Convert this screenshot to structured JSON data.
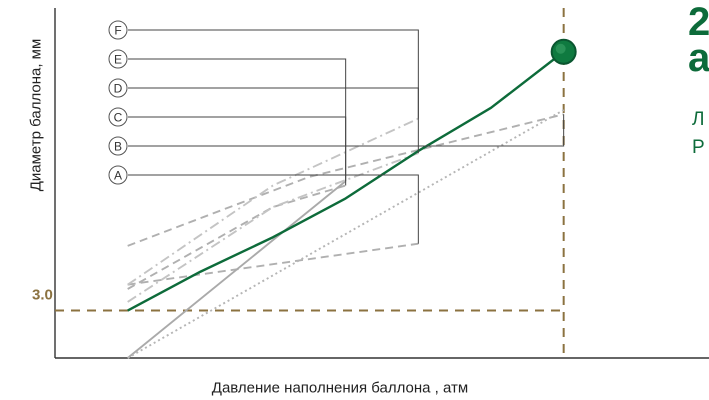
{
  "chart_data": {
    "type": "line",
    "title": "",
    "xlabel": "Давление наполнения баллона , атм",
    "ylabel": "Диаметр баллона, мм",
    "yticks": [
      "3.0"
    ],
    "markers": [
      "A",
      "B",
      "C",
      "D",
      "E",
      "F"
    ],
    "colors": {
      "main": "#0d6b3a",
      "reference": "#8b7240",
      "grey": "#aaaaaa",
      "grey_dashed": "#b0b0b0",
      "grey_dashdot": "#c4c4c4"
    },
    "series": [
      {
        "label": "A",
        "style": "dashed",
        "color": "#b0b0b0",
        "x": [
          0,
          4.0
        ],
        "y": [
          0.6,
          1.55
        ]
      },
      {
        "label": "B",
        "style": "dashed",
        "color": "#b0b0b0",
        "x": [
          0,
          2.5,
          6.0
        ],
        "y": [
          1.5,
          3.1,
          4.55
        ]
      },
      {
        "label": "C",
        "style": "dashed",
        "color": "#b0b0b0",
        "x": [
          0,
          2.0,
          3.0
        ],
        "y": [
          0.5,
          2.4,
          2.9
        ]
      },
      {
        "label": "D",
        "style": "dashdot",
        "color": "#c4c4c4",
        "x": [
          0,
          2.0,
          4.0
        ],
        "y": [
          0.6,
          2.9,
          4.45
        ]
      },
      {
        "label": "E",
        "style": "solid",
        "color": "#aaaaaa",
        "x": [
          0,
          3.0
        ],
        "y": [
          -1.1,
          3.0
        ]
      },
      {
        "label": "F",
        "style": "dashdot",
        "color": "#c4c4c4",
        "x": [
          0,
          2.0,
          4.0
        ],
        "y": [
          0.2,
          2.4,
          3.65
        ]
      },
      {
        "label": "",
        "style": "dotted",
        "color": "#b5b5b5",
        "x": [
          0,
          6.0
        ],
        "y": [
          -1.1,
          4.65
        ]
      },
      {
        "label": "",
        "style": "solid",
        "color": "#0d6b3a",
        "x": [
          0,
          1.0,
          2.0,
          3.0,
          4.0,
          5.0,
          6.0
        ],
        "y": [
          0.0,
          0.9,
          1.7,
          2.6,
          3.7,
          4.7,
          6.0
        ]
      }
    ],
    "endpoint": {
      "x": 6.0,
      "y": 6.0
    },
    "reference_lines": {
      "y": 0.0,
      "x": 6.0
    },
    "axis_range": {
      "x": [
        -1.0,
        8.0
      ],
      "y": [
        -1.1,
        7.2
      ]
    }
  },
  "side_text": {
    "big": "2\nа",
    "small": "Л\nР"
  }
}
